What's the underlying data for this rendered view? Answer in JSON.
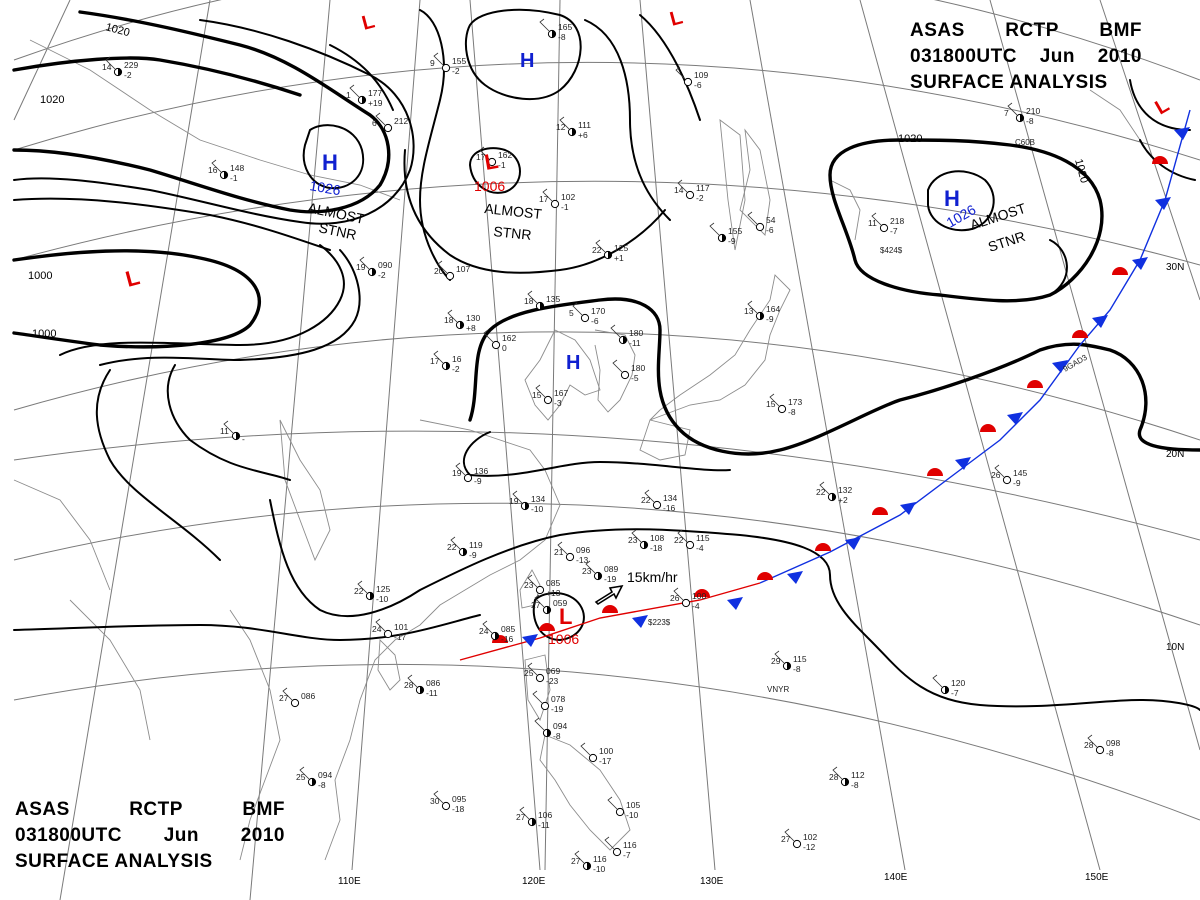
{
  "title": {
    "line1": [
      "ASAS",
      "RCTP",
      "BMF"
    ],
    "line2": [
      "031800UTC",
      "Jun",
      "2010"
    ],
    "line3": "SURFACE ANALYSIS"
  },
  "longitude_labels": [
    "110E",
    "120E",
    "130E",
    "140E",
    "150E"
  ],
  "latitude_labels": [
    "30N",
    "20N",
    "10N"
  ],
  "isobar_labels": [
    "1020",
    "1020",
    "1000",
    "1000",
    "1020",
    "1020"
  ],
  "pressure_centers": [
    {
      "type": "L",
      "color": "#e00000"
    },
    {
      "type": "L",
      "color": "#e00000"
    },
    {
      "type": "H",
      "color": "#1020d0"
    },
    {
      "type": "H",
      "color": "#1020d0",
      "value": "1026",
      "note1": "ALMOST",
      "note2": "STNR"
    },
    {
      "type": "L",
      "color": "#e00000",
      "value": "1006",
      "note1": "ALMOST",
      "note2": "STNR"
    },
    {
      "type": "L",
      "color": "#e00000"
    },
    {
      "type": "H",
      "color": "#1020d0"
    },
    {
      "type": "H",
      "color": "#1020d0",
      "value": "1026",
      "note1": "ALMOST",
      "note2": "STNR"
    },
    {
      "type": "L",
      "color": "#e00000",
      "value": "1006"
    },
    {
      "type": "L",
      "color": "#e00000"
    }
  ],
  "motion": {
    "speed": "15km/hr"
  },
  "front": {
    "type": "stationary",
    "warm_color": "#e00000",
    "cold_color": "#1030e0"
  },
  "station_codes": [
    "C60B",
    "$424$",
    "$223$",
    "VNYR",
    "9GAD3"
  ],
  "stations": [
    {
      "t": "14",
      "p": "229",
      "x": "-2"
    },
    {
      "t": "9",
      "p": "155",
      "x": "-2"
    },
    {
      "t": "1",
      "p": "177",
      "x": "+19"
    },
    {
      "t": "6",
      "p": "212",
      "x": ""
    },
    {
      "t": "16",
      "p": "148",
      "x": "-1"
    },
    {
      "t": "17",
      "p": "162",
      "x": "-1"
    },
    {
      "t": "12",
      "p": "111",
      "x": "+6"
    },
    {
      "t": "17",
      "p": "102",
      "x": "-1"
    },
    {
      "t": "22",
      "p": "125",
      "x": "+1"
    },
    {
      "t": "14",
      "p": "117",
      "x": "-2"
    },
    {
      "t": "",
      "p": "165",
      "x": "-8"
    },
    {
      "t": "",
      "p": "109",
      "x": "-6"
    },
    {
      "t": "",
      "p": "155",
      "x": "-9"
    },
    {
      "t": "",
      "p": "54",
      "x": "-6"
    },
    {
      "t": "19",
      "p": "090",
      "x": "-2"
    },
    {
      "t": "20",
      "p": "107",
      "x": ""
    },
    {
      "t": "18",
      "p": "135",
      "x": ""
    },
    {
      "t": "5",
      "p": "170",
      "x": "-6"
    },
    {
      "t": "18",
      "p": "130",
      "x": "+8"
    },
    {
      "t": "",
      "p": "162",
      "x": "0"
    },
    {
      "t": "",
      "p": "180",
      "x": "-11"
    },
    {
      "t": "",
      "p": "180",
      "x": "-5"
    },
    {
      "t": "17",
      "p": "16",
      "x": "-2"
    },
    {
      "t": "15",
      "p": "167",
      "x": "-3"
    },
    {
      "t": "13",
      "p": "164",
      "x": "-9"
    },
    {
      "t": "11",
      "p": "218",
      "x": "-7"
    },
    {
      "t": "7",
      "p": "210",
      "x": "-8"
    },
    {
      "t": "15",
      "p": "173",
      "x": "-8"
    },
    {
      "t": "11",
      "p": "",
      "x": "-"
    },
    {
      "t": "19",
      "p": "136",
      "x": "-9"
    },
    {
      "t": "19",
      "p": "134",
      "x": "-10"
    },
    {
      "t": "22",
      "p": "134",
      "x": "-16"
    },
    {
      "t": "22",
      "p": "132",
      "x": "+2"
    },
    {
      "t": "26",
      "p": "145",
      "x": "-9"
    },
    {
      "t": "22",
      "p": "119",
      "x": "-9"
    },
    {
      "t": "21",
      "p": "096",
      "x": "-13"
    },
    {
      "t": "23",
      "p": "108",
      "x": "-18"
    },
    {
      "t": "22",
      "p": "115",
      "x": "-4"
    },
    {
      "t": "23",
      "p": "089",
      "x": "-19"
    },
    {
      "t": "23",
      "p": "085",
      "x": "+13"
    },
    {
      "t": "22",
      "p": "125",
      "x": "-10"
    },
    {
      "t": "24",
      "p": "101",
      "x": "-17"
    },
    {
      "t": "24",
      "p": "085",
      "x": "-16"
    },
    {
      "t": "26",
      "p": "100",
      "x": "-4"
    },
    {
      "t": "27",
      "p": "059",
      "x": ""
    },
    {
      "t": "25",
      "p": "069",
      "x": "-23"
    },
    {
      "t": "28",
      "p": "086",
      "x": "-11"
    },
    {
      "t": "27",
      "p": "086",
      "x": ""
    },
    {
      "t": "29",
      "p": "115",
      "x": "-8"
    },
    {
      "t": "",
      "p": "078",
      "x": "-19"
    },
    {
      "t": "",
      "p": "094",
      "x": "-8"
    },
    {
      "t": "",
      "p": "100",
      "x": "-17"
    },
    {
      "t": "",
      "p": "120",
      "x": "-7"
    },
    {
      "t": "28",
      "p": "098",
      "x": "-8"
    },
    {
      "t": "25",
      "p": "094",
      "x": "-8"
    },
    {
      "t": "30",
      "p": "095",
      "x": "-18"
    },
    {
      "t": "27",
      "p": "106",
      "x": "-11"
    },
    {
      "t": "",
      "p": "105",
      "x": "-10"
    },
    {
      "t": "28",
      "p": "112",
      "x": "-8"
    },
    {
      "t": "27",
      "p": "102",
      "x": "-12"
    },
    {
      "t": "27",
      "p": "116",
      "x": "-10"
    },
    {
      "t": "",
      "p": "116",
      "x": "-7"
    }
  ]
}
